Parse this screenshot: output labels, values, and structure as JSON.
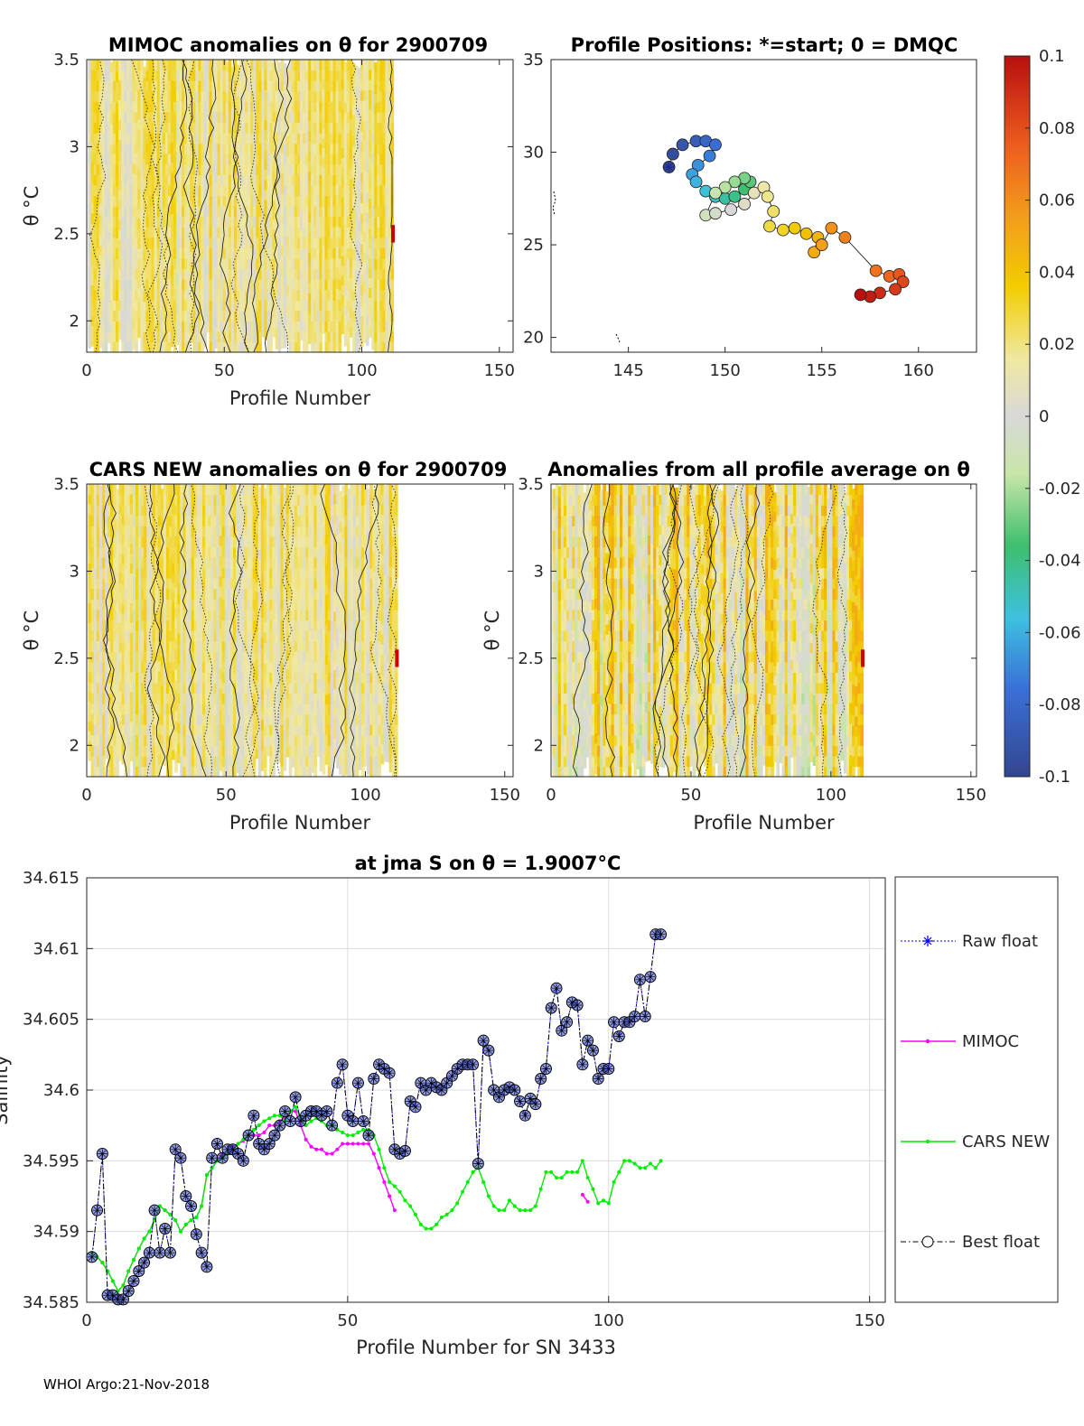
{
  "footer": "WHOI Argo:21-Nov-2018",
  "colors": {
    "raw": "#0000ff",
    "mimoc": "#ff00ff",
    "cars": "#00ee00",
    "best": "#000000",
    "marker": "#3b4ed6"
  },
  "chart_data": [
    {
      "type": "heatmap",
      "title": "MIMOC anomalies on θ  for 2900709",
      "xlabel": "Profile Number",
      "ylabel": "θ °C",
      "xlim": [
        0,
        155
      ],
      "ylim": [
        1.82,
        3.5
      ],
      "xticks": [
        "0",
        "50",
        "100",
        "150"
      ],
      "yticks": [
        "2",
        "2.5",
        "3",
        "3.5"
      ],
      "profiles_with_data": [
        1,
        111
      ],
      "typical_anomaly_range": [
        -0.005,
        0.035
      ]
    },
    {
      "type": "scatter",
      "title": "Profile Positions: *=start; 0 = DMQC",
      "xlim": [
        141,
        163
      ],
      "ylim": [
        19.2,
        35
      ],
      "xticks": [
        "145",
        "150",
        "155",
        "160"
      ],
      "yticks": [
        "20",
        "25",
        "30",
        "35"
      ],
      "start_position": [
        147.1,
        29.2
      ],
      "track_lon": [
        147.1,
        147.3,
        147.8,
        148.5,
        149.0,
        149.5,
        149.2,
        148.6,
        148.3,
        148.5,
        149.0,
        149.5,
        150.0,
        150.5,
        151.0,
        151.3,
        151.0,
        150.5,
        150.0,
        149.5,
        149.0,
        149.5,
        150.3,
        151.0,
        151.5,
        152.0,
        152.2,
        152.5,
        152.3,
        153.0,
        153.6,
        154.2,
        154.8,
        154.6,
        155.0,
        155.5,
        156.2,
        157.8,
        158.5,
        159.0,
        159.2,
        158.8,
        158.0,
        157.5,
        157.0
      ],
      "track_lat": [
        29.2,
        29.9,
        30.4,
        30.6,
        30.6,
        30.4,
        29.8,
        29.3,
        28.8,
        28.4,
        27.9,
        27.6,
        27.5,
        27.6,
        28.0,
        28.4,
        28.6,
        28.4,
        28.1,
        27.8,
        26.6,
        26.7,
        26.9,
        27.2,
        27.8,
        28.1,
        27.6,
        26.8,
        26.0,
        25.8,
        25.9,
        25.6,
        25.4,
        24.6,
        25.0,
        25.9,
        25.4,
        23.6,
        23.3,
        23.4,
        23.0,
        22.6,
        22.4,
        22.2,
        22.3
      ],
      "colorbar": {
        "ticks": [
          "0.1",
          "0.08",
          "0.06",
          "0.04",
          "0.02",
          "0",
          "-0.02",
          "-0.04",
          "-0.06",
          "-0.08",
          "-0.1"
        ],
        "range": [
          -0.1,
          0.1
        ]
      }
    },
    {
      "type": "heatmap",
      "title": "CARS NEW anomalies on θ for 2900709",
      "xlabel": "Profile Number",
      "ylabel": "θ °C",
      "xlim": [
        0,
        153
      ],
      "ylim": [
        1.82,
        3.5
      ],
      "xticks": [
        "0",
        "50",
        "100",
        "150"
      ],
      "yticks": [
        "2",
        "2.5",
        "3",
        "3.5"
      ],
      "profiles_with_data": [
        1,
        111
      ],
      "typical_anomaly_range": [
        -0.005,
        0.035
      ]
    },
    {
      "type": "heatmap",
      "title": "Anomalies from all profile average on θ",
      "xlabel": "Profile Number",
      "ylabel": "θ °C",
      "xlim": [
        0,
        152
      ],
      "ylim": [
        1.82,
        3.5
      ],
      "xticks": [
        "0",
        "50",
        "100",
        "150"
      ],
      "yticks": [
        "2",
        "2.5",
        "3",
        "3.5"
      ],
      "profiles_with_data": [
        1,
        111
      ],
      "typical_anomaly_range": [
        -0.02,
        0.05
      ]
    },
    {
      "type": "line",
      "title": "at jma S on θ = 1.9007°C",
      "xlabel": "Profile Number for SN 3433",
      "ylabel": "Salinity",
      "xlim": [
        0,
        153
      ],
      "ylim": [
        34.585,
        34.615
      ],
      "xticks": [
        "0",
        "50",
        "100",
        "150"
      ],
      "yticks": [
        "34.615",
        "34.61",
        "34.605",
        "34.6",
        "34.595",
        "34.59",
        "34.585"
      ],
      "legend": [
        "Raw float",
        "MIMOC",
        "CARS NEW",
        "Best float"
      ],
      "legend_position": "outside-right",
      "series": [
        {
          "name": "Raw float",
          "x": [
            1,
            2,
            3,
            4,
            5,
            6,
            7,
            8,
            9,
            10,
            11,
            12,
            13,
            14,
            15,
            16,
            17,
            18,
            19,
            20,
            21,
            22,
            23,
            24,
            25,
            26,
            27,
            28,
            29,
            30,
            31,
            32,
            33,
            34,
            35,
            36,
            37,
            38,
            39,
            40,
            41,
            42,
            43,
            44,
            45,
            46,
            47,
            48,
            49,
            50,
            51,
            52,
            53,
            54,
            55,
            56,
            57,
            58,
            59,
            60,
            61,
            62,
            63,
            64,
            65,
            66,
            67,
            68,
            69,
            70,
            71,
            72,
            73,
            74,
            75,
            76,
            77,
            78,
            79,
            80,
            81,
            82,
            83,
            84,
            85,
            86,
            87,
            88,
            89,
            90,
            91,
            92,
            93,
            94,
            95,
            96,
            97,
            98,
            99,
            100,
            101,
            102,
            103,
            104,
            105,
            106,
            107,
            108,
            109,
            110
          ],
          "y": [
            34.5882,
            34.5915,
            34.5955,
            34.5855,
            34.5855,
            34.5852,
            34.5852,
            34.5858,
            34.5865,
            34.5872,
            34.5878,
            34.5885,
            34.5915,
            34.5885,
            34.5902,
            34.5885,
            34.5958,
            34.5952,
            34.5925,
            34.5918,
            34.5898,
            34.5885,
            34.5875,
            34.5952,
            34.5962,
            34.5952,
            34.5958,
            34.5958,
            34.5955,
            34.595,
            34.5968,
            34.5982,
            34.5962,
            34.5958,
            34.5962,
            34.5968,
            34.5975,
            34.5985,
            34.5978,
            34.5995,
            34.5978,
            34.5982,
            34.5985,
            34.5985,
            34.5982,
            34.5985,
            34.5975,
            34.6005,
            34.6018,
            34.5982,
            34.5978,
            34.6005,
            34.5978,
            34.5968,
            34.6008,
            34.6018,
            34.6015,
            34.6012,
            34.5958,
            34.5955,
            34.5957,
            34.5992,
            34.5988,
            34.6005,
            34.6,
            34.6005,
            34.6002,
            34.6,
            34.6005,
            34.601,
            34.6015,
            34.6018,
            34.6018,
            34.6018,
            34.5948,
            34.6035,
            34.6028,
            34.6,
            34.5995,
            34.6,
            34.6002,
            34.6,
            34.5992,
            34.5982,
            34.5994,
            34.599,
            34.6008,
            34.6015,
            34.6058,
            34.6072,
            34.6042,
            34.6048,
            34.6062,
            34.606,
            34.6018,
            34.6035,
            34.6028,
            34.6008,
            34.6015,
            34.6015,
            34.6048,
            34.6038,
            34.6048,
            34.6048,
            34.6052,
            34.6078,
            34.6052,
            34.608,
            34.611,
            34.611
          ]
        },
        {
          "name": "MIMOC",
          "x": [
            1,
            2,
            3,
            4,
            5,
            6,
            7,
            8,
            9,
            10,
            11,
            12,
            13,
            14,
            15,
            16,
            17,
            18,
            19,
            20,
            21,
            22,
            23,
            24,
            25,
            26,
            27,
            28,
            29,
            30,
            31,
            32,
            33,
            34,
            35,
            36,
            37,
            38,
            39,
            40,
            41,
            42,
            43,
            44,
            45,
            46,
            47,
            48,
            49,
            50,
            51,
            52,
            53,
            54,
            55,
            56,
            57,
            58,
            59,
            95,
            96
          ],
          "y": [
            34.5885,
            34.5882,
            34.5878,
            34.5872,
            34.5865,
            34.5858,
            34.5862,
            34.5872,
            34.588,
            34.5888,
            34.5895,
            34.59,
            34.5908,
            34.5918,
            34.5915,
            34.5912,
            34.5908,
            34.59,
            34.5905,
            34.5908,
            34.591,
            34.5918,
            34.594,
            34.5945,
            34.595,
            34.5955,
            34.5955,
            34.596,
            34.5962,
            34.5964,
            34.5968,
            34.5968,
            34.5968,
            34.597,
            34.5975,
            34.5975,
            34.5978,
            34.598,
            34.5985,
            34.5985,
            34.5975,
            34.5965,
            34.596,
            34.5958,
            34.5958,
            34.5955,
            34.5955,
            34.5958,
            34.5962,
            34.5962,
            34.5962,
            34.5962,
            34.5962,
            34.5962,
            34.5955,
            34.5945,
            34.5935,
            34.5925,
            34.5915,
            34.5926,
            34.5921
          ]
        },
        {
          "name": "CARS NEW",
          "x": [
            1,
            2,
            3,
            4,
            5,
            6,
            7,
            8,
            9,
            10,
            11,
            12,
            13,
            14,
            15,
            16,
            17,
            18,
            19,
            20,
            21,
            22,
            23,
            24,
            25,
            26,
            27,
            28,
            29,
            30,
            31,
            32,
            33,
            34,
            35,
            36,
            37,
            38,
            39,
            40,
            41,
            42,
            43,
            44,
            45,
            46,
            47,
            48,
            49,
            50,
            51,
            52,
            53,
            54,
            55,
            56,
            57,
            58,
            59,
            60,
            61,
            62,
            63,
            64,
            65,
            66,
            67,
            68,
            69,
            70,
            71,
            72,
            73,
            74,
            75,
            76,
            77,
            78,
            79,
            80,
            81,
            82,
            83,
            84,
            85,
            86,
            87,
            88,
            89,
            90,
            91,
            92,
            93,
            94,
            95,
            96,
            97,
            98,
            99,
            100,
            101,
            102,
            103,
            104,
            105,
            106,
            107,
            108,
            109,
            110
          ],
          "y": [
            34.5885,
            34.5882,
            34.5878,
            34.5872,
            34.5865,
            34.5858,
            34.5862,
            34.5872,
            34.588,
            34.5888,
            34.5895,
            34.59,
            34.5908,
            34.5918,
            34.5915,
            34.5912,
            34.5908,
            34.59,
            34.5905,
            34.5908,
            34.591,
            34.5918,
            34.594,
            34.5945,
            34.595,
            34.5952,
            34.5955,
            34.5958,
            34.5962,
            34.5965,
            34.5968,
            34.5972,
            34.5975,
            34.5978,
            34.598,
            34.5982,
            34.5982,
            34.5978,
            34.5985,
            34.5988,
            34.598,
            34.5975,
            34.5978,
            34.598,
            34.5978,
            34.5975,
            34.5975,
            34.5972,
            34.597,
            34.5968,
            34.5968,
            34.597,
            34.5972,
            34.5972,
            34.5968,
            34.5958,
            34.5945,
            34.5935,
            34.5932,
            34.5928,
            34.5922,
            34.5918,
            34.5912,
            34.5905,
            34.5902,
            34.5902,
            34.5905,
            34.591,
            34.5912,
            34.5915,
            34.592,
            34.5928,
            34.5935,
            34.5942,
            34.5945,
            34.5935,
            34.5925,
            34.5918,
            34.5915,
            34.5915,
            34.5922,
            34.5918,
            34.5915,
            34.5915,
            34.5915,
            34.5918,
            34.593,
            34.5942,
            34.5942,
            34.5938,
            34.5938,
            34.5942,
            34.5942,
            34.5942,
            34.595,
            34.5938,
            34.593,
            34.592,
            34.5922,
            34.592,
            34.5935,
            34.5942,
            34.595,
            34.595,
            34.5948,
            34.5945,
            34.5945,
            34.5948,
            34.5945,
            34.595
          ]
        },
        {
          "name": "Best float",
          "x": [
            1,
            2,
            3,
            4,
            5,
            6,
            7,
            8,
            9,
            10,
            11,
            12,
            13,
            14,
            15,
            16,
            17,
            18,
            19,
            20,
            21,
            22,
            23,
            24,
            25,
            26,
            27,
            28,
            29,
            30,
            31,
            32,
            33,
            34,
            35,
            36,
            37,
            38,
            39,
            40,
            41,
            42,
            43,
            44,
            45,
            46,
            47,
            48,
            49,
            50,
            51,
            52,
            53,
            54,
            55,
            56,
            57,
            58,
            59,
            60,
            61,
            62,
            63,
            64,
            65,
            66,
            67,
            68,
            69,
            70,
            71,
            72,
            73,
            74,
            75,
            76,
            77,
            78,
            79,
            80,
            81,
            82,
            83,
            84,
            85,
            86,
            87,
            88,
            89,
            90,
            91,
            92,
            93,
            94,
            95,
            96,
            97,
            98,
            99,
            100,
            101,
            102,
            103,
            104,
            105,
            106,
            107,
            108,
            109,
            110
          ],
          "y": [
            34.5882,
            34.5915,
            34.5955,
            34.5855,
            34.5855,
            34.5852,
            34.5852,
            34.5858,
            34.5865,
            34.5872,
            34.5878,
            34.5885,
            34.5915,
            34.5885,
            34.5902,
            34.5885,
            34.5958,
            34.5952,
            34.5925,
            34.5918,
            34.5898,
            34.5885,
            34.5875,
            34.5952,
            34.5962,
            34.5952,
            34.5958,
            34.5958,
            34.5955,
            34.595,
            34.5968,
            34.5982,
            34.5962,
            34.5958,
            34.5962,
            34.5968,
            34.5975,
            34.5985,
            34.5978,
            34.5995,
            34.5978,
            34.5982,
            34.5985,
            34.5985,
            34.5982,
            34.5985,
            34.5975,
            34.6005,
            34.6018,
            34.5982,
            34.5978,
            34.6005,
            34.5978,
            34.5968,
            34.6008,
            34.6018,
            34.6015,
            34.6012,
            34.5958,
            34.5955,
            34.5957,
            34.5992,
            34.5988,
            34.6005,
            34.6,
            34.6005,
            34.6002,
            34.6,
            34.6005,
            34.601,
            34.6015,
            34.6018,
            34.6018,
            34.6018,
            34.5948,
            34.6035,
            34.6028,
            34.6,
            34.5995,
            34.6,
            34.6002,
            34.6,
            34.5992,
            34.5982,
            34.5994,
            34.599,
            34.6008,
            34.6015,
            34.6058,
            34.6072,
            34.6042,
            34.6048,
            34.6062,
            34.606,
            34.6018,
            34.6035,
            34.6028,
            34.6008,
            34.6015,
            34.6015,
            34.6048,
            34.6038,
            34.6048,
            34.6048,
            34.6052,
            34.6078,
            34.6052,
            34.608,
            34.611,
            34.611
          ]
        }
      ]
    }
  ]
}
